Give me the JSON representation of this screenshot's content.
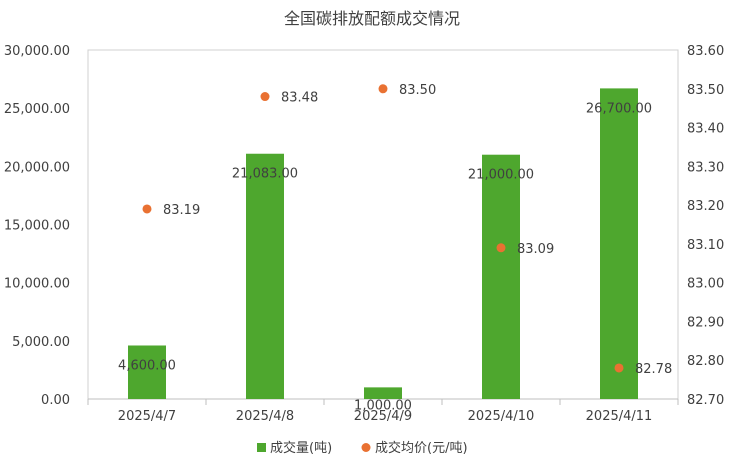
{
  "chart_data": {
    "type": "bar",
    "title": "全国碳排放配额成交情况",
    "categories": [
      "2025/4/7",
      "2025/4/8",
      "2025/4/9",
      "2025/4/10",
      "2025/4/11"
    ],
    "series": [
      {
        "name": "成交量(吨)",
        "type": "bar",
        "axis": "left",
        "color": "#4EA72E",
        "values": [
          4600,
          21083,
          1000,
          21000,
          26700
        ],
        "labels": [
          "4,600.00",
          "21,083.00",
          "1,000.00",
          "21,000.00",
          "26,700.00"
        ]
      },
      {
        "name": "成交均价(元/吨)",
        "type": "scatter",
        "axis": "right",
        "color": "#E97132",
        "values": [
          83.19,
          83.48,
          83.5,
          83.09,
          82.78
        ],
        "labels": [
          "83.19",
          "83.48",
          "83.50",
          "83.09",
          "82.78"
        ]
      }
    ],
    "y_left": {
      "min": 0,
      "max": 30000,
      "ticks": [
        0,
        5000,
        10000,
        15000,
        20000,
        25000,
        30000
      ],
      "tick_labels": [
        "0.00",
        "5,000.00",
        "10,000.00",
        "15,000.00",
        "20,000.00",
        "25,000.00",
        "30,000.00"
      ]
    },
    "y_right": {
      "min": 82.7,
      "max": 83.6,
      "ticks": [
        82.7,
        82.8,
        82.9,
        83.0,
        83.1,
        83.2,
        83.3,
        83.4,
        83.5,
        83.6
      ],
      "tick_labels": [
        "82.70",
        "82.80",
        "82.90",
        "83.00",
        "83.10",
        "83.20",
        "83.30",
        "83.40",
        "83.50",
        "83.60"
      ]
    },
    "grid": false,
    "legend_position": "bottom"
  }
}
